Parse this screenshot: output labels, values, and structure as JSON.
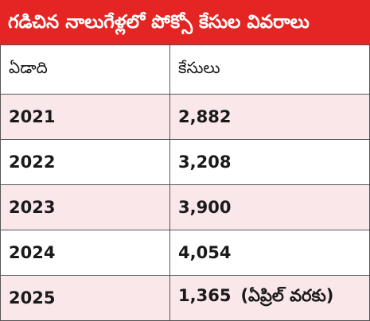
{
  "title": "గడిచిన నాలుగేళ్లలో పోక్సో కేసుల వివరాలు",
  "colors": {
    "title_bg": "#e52424",
    "title_text": "#ffffff",
    "alt_row_bg": "#f9e7ea",
    "border": "#555555"
  },
  "chart_data": {
    "type": "table",
    "title": "గడిచిన నాలుగేళ్లలో పోక్సో కేసుల వివరాలు",
    "columns": [
      "ఏడాది",
      "కేసులు"
    ],
    "rows": [
      {
        "year": "2021",
        "cases": "2,882",
        "note": ""
      },
      {
        "year": "2022",
        "cases": "3,208",
        "note": ""
      },
      {
        "year": "2023",
        "cases": "3,900",
        "note": ""
      },
      {
        "year": "2024",
        "cases": "4,054",
        "note": ""
      },
      {
        "year": "2025",
        "cases": "1,365",
        "note": "(ఏప్రిల్ వరకు)"
      }
    ]
  }
}
